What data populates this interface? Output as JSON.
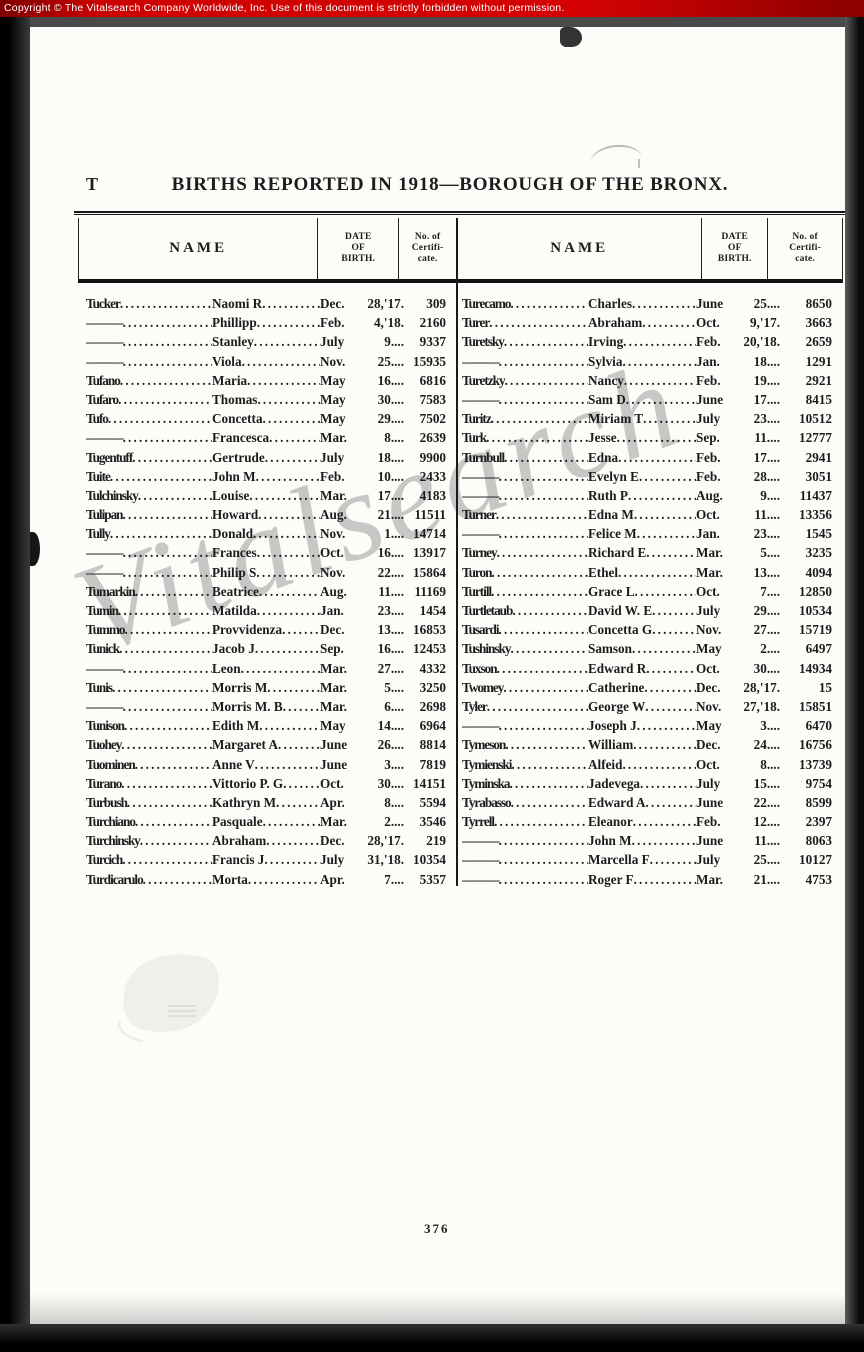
{
  "banner": {
    "text": "Copyright ©  The Vitalsearch Company Worldwide, Inc.  Use of this document is strictly forbidden without permission."
  },
  "colors": {
    "banner_red": "#c40000",
    "paper": "#fcfcf9",
    "ink": "#1c1c1c",
    "watermark_gray": "#919191"
  },
  "page": {
    "section_letter": "T",
    "title": "BIRTHS REPORTED IN 1918—BOROUGH OF THE BRONX.",
    "page_number": "376",
    "watermark": "Vitalsearch",
    "table": {
      "headers": {
        "name": "NAME",
        "date": [
          "DATE",
          "OF",
          "BIRTH."
        ],
        "cert": [
          "No. of",
          "Certifi-",
          "cate."
        ]
      },
      "left_rows": [
        {
          "surname": "Tucker",
          "given": "Naomi R",
          "month": "Dec.",
          "day": "28,'17.",
          "cert": "309"
        },
        {
          "surname": "———",
          "given": "Phillipp",
          "month": "Feb.",
          "day": "4,'18.",
          "cert": "2160"
        },
        {
          "surname": "———",
          "given": "Stanley",
          "month": "July",
          "day": "9....",
          "cert": "9337"
        },
        {
          "surname": "———",
          "given": "Viola",
          "month": "Nov.",
          "day": "25....",
          "cert": "15935"
        },
        {
          "surname": "Tufano",
          "given": "Maria",
          "month": "May",
          "day": "16....",
          "cert": "6816"
        },
        {
          "surname": "Tufaro",
          "given": "Thomas",
          "month": "May",
          "day": "30....",
          "cert": "7583"
        },
        {
          "surname": "Tufo",
          "given": "Concetta",
          "month": "May",
          "day": "29....",
          "cert": "7502"
        },
        {
          "surname": "———",
          "given": "Francesca",
          "month": "Mar.",
          "day": "8....",
          "cert": "2639"
        },
        {
          "surname": "Tugentuff",
          "given": "Gertrude",
          "month": "July",
          "day": "18....",
          "cert": "9900"
        },
        {
          "surname": "Tuite",
          "given": "John M",
          "month": "Feb.",
          "day": "10....",
          "cert": "2433"
        },
        {
          "surname": "Tulchinsky",
          "given": "Louise",
          "month": "Mar.",
          "day": "17....",
          "cert": "4183"
        },
        {
          "surname": "Tulipan",
          "given": "Howard",
          "month": "Aug.",
          "day": "21....",
          "cert": "11511"
        },
        {
          "surname": "Tully",
          "given": "Donald",
          "month": "Nov.",
          "day": "1....",
          "cert": "14714"
        },
        {
          "surname": "———",
          "given": "Frances",
          "month": "Oct.",
          "day": "16....",
          "cert": "13917"
        },
        {
          "surname": "———",
          "given": "Philip S",
          "month": "Nov.",
          "day": "22....",
          "cert": "15864"
        },
        {
          "surname": "Tumarkin",
          "given": "Beatrice",
          "month": "Aug.",
          "day": "11....",
          "cert": "11169"
        },
        {
          "surname": "Tumin",
          "given": "Matilda",
          "month": "Jan.",
          "day": "23....",
          "cert": "1454"
        },
        {
          "surname": "Tummo",
          "given": "Provvidenza",
          "month": "Dec.",
          "day": "13....",
          "cert": "16853"
        },
        {
          "surname": "Tunick",
          "given": "Jacob J",
          "month": "Sep.",
          "day": "16....",
          "cert": "12453"
        },
        {
          "surname": "———",
          "given": "Leon",
          "month": "Mar.",
          "day": "27....",
          "cert": "4332"
        },
        {
          "surname": "Tunis",
          "given": "Morris M",
          "month": "Mar.",
          "day": "5....",
          "cert": "3250"
        },
        {
          "surname": "———",
          "given": "Morris M. B",
          "month": "Mar.",
          "day": "6....",
          "cert": "2698"
        },
        {
          "surname": "Tunison",
          "given": "Edith M",
          "month": "May",
          "day": "14....",
          "cert": "6964"
        },
        {
          "surname": "Tuohey",
          "given": "Margaret A",
          "month": "June",
          "day": "26....",
          "cert": "8814"
        },
        {
          "surname": "Tuominen",
          "given": "Anne V",
          "month": "June",
          "day": "3....",
          "cert": "7819"
        },
        {
          "surname": "Turano",
          "given": "Vittorio P. G",
          "month": "Oct.",
          "day": "30....",
          "cert": "14151"
        },
        {
          "surname": "Turbush",
          "given": "Kathryn M",
          "month": "Apr.",
          "day": "8....",
          "cert": "5594"
        },
        {
          "surname": "Turchiano",
          "given": "Pasquale",
          "month": "Mar.",
          "day": "2....",
          "cert": "3546"
        },
        {
          "surname": "Turchinsky",
          "given": "Abraham",
          "month": "Dec.",
          "day": "28,'17.",
          "cert": "219"
        },
        {
          "surname": "Turcich",
          "given": "Francis J",
          "month": "July",
          "day": "31,'18.",
          "cert": "10354"
        },
        {
          "surname": "Turdicarulo",
          "given": "Morta",
          "month": "Apr.",
          "day": "7....",
          "cert": "5357"
        }
      ],
      "right_rows": [
        {
          "surname": "Turecamo",
          "given": "Charles",
          "month": "June",
          "day": "25....",
          "cert": "8650"
        },
        {
          "surname": "Turer",
          "given": "Abraham",
          "month": "Oct.",
          "day": "9,'17.",
          "cert": "3663"
        },
        {
          "surname": "Turetsky",
          "given": "Irving",
          "month": "Feb.",
          "day": "20,'18.",
          "cert": "2659"
        },
        {
          "surname": "———",
          "given": "Sylvia",
          "month": "Jan.",
          "day": "18....",
          "cert": "1291"
        },
        {
          "surname": "Turetzky",
          "given": "Nancy",
          "month": "Feb.",
          "day": "19....",
          "cert": "2921"
        },
        {
          "surname": "———",
          "given": "Sam D",
          "month": "June",
          "day": "17....",
          "cert": "8415"
        },
        {
          "surname": "Turitz",
          "given": "Miriam T",
          "month": "July",
          "day": "23....",
          "cert": "10512"
        },
        {
          "surname": "Turk",
          "given": "Jesse",
          "month": "Sep.",
          "day": "11....",
          "cert": "12777"
        },
        {
          "surname": "Turnbull",
          "given": "Edna",
          "month": "Feb.",
          "day": "17....",
          "cert": "2941"
        },
        {
          "surname": "———",
          "given": "Evelyn E",
          "month": "Feb.",
          "day": "28....",
          "cert": "3051"
        },
        {
          "surname": "———",
          "given": "Ruth P",
          "month": "Aug.",
          "day": "9....",
          "cert": "11437"
        },
        {
          "surname": "Turner",
          "given": "Edna M",
          "month": "Oct.",
          "day": "11....",
          "cert": "13356"
        },
        {
          "surname": "———",
          "given": "Felice M",
          "month": "Jan.",
          "day": "23....",
          "cert": "1545"
        },
        {
          "surname": "Turney",
          "given": "Richard E",
          "month": "Mar.",
          "day": "5....",
          "cert": "3235"
        },
        {
          "surname": "Turon",
          "given": "Ethel",
          "month": "Mar.",
          "day": "13....",
          "cert": "4094"
        },
        {
          "surname": "Turtill",
          "given": "Grace L",
          "month": "Oct.",
          "day": "7....",
          "cert": "12850"
        },
        {
          "surname": "Turtletaub",
          "given": "David W. E",
          "month": "July",
          "day": "29....",
          "cert": "10534"
        },
        {
          "surname": "Tusardi",
          "given": "Concetta G",
          "month": "Nov.",
          "day": "27....",
          "cert": "15719"
        },
        {
          "surname": "Tushinsky",
          "given": "Samson",
          "month": "May",
          "day": "2....",
          "cert": "6497"
        },
        {
          "surname": "Tuxson",
          "given": "Edward R",
          "month": "Oct.",
          "day": "30....",
          "cert": "14934"
        },
        {
          "surname": "Twomey",
          "given": "Catherine",
          "month": "Dec.",
          "day": "28,'17.",
          "cert": "15"
        },
        {
          "surname": "Tyler",
          "given": "George W",
          "month": "Nov.",
          "day": "27,'18.",
          "cert": "15851"
        },
        {
          "surname": "———",
          "given": "Joseph J",
          "month": "May",
          "day": "3....",
          "cert": "6470"
        },
        {
          "surname": "Tymeson",
          "given": "William",
          "month": "Dec.",
          "day": "24....",
          "cert": "16756"
        },
        {
          "surname": "Tymienski",
          "given": "Alfeid",
          "month": "Oct.",
          "day": "8....",
          "cert": "13739"
        },
        {
          "surname": "Tyminska",
          "given": "Jadevega",
          "month": "July",
          "day": "15....",
          "cert": "9754"
        },
        {
          "surname": "Tyrabasso",
          "given": "Edward A",
          "month": "June",
          "day": "22....",
          "cert": "8599"
        },
        {
          "surname": "Tyrrell",
          "given": "Eleanor",
          "month": "Feb.",
          "day": "12....",
          "cert": "2397"
        },
        {
          "surname": "———",
          "given": "John M",
          "month": "June",
          "day": "11....",
          "cert": "8063"
        },
        {
          "surname": "———",
          "given": "Marcella F",
          "month": "July",
          "day": "25....",
          "cert": "10127"
        },
        {
          "surname": "———",
          "given": "Roger F",
          "month": "Mar.",
          "day": "21....",
          "cert": "4753"
        }
      ]
    }
  }
}
